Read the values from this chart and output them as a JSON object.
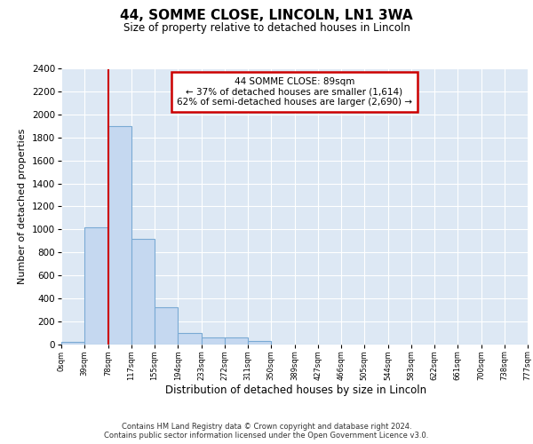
{
  "title": "44, SOMME CLOSE, LINCOLN, LN1 3WA",
  "subtitle": "Size of property relative to detached houses in Lincoln",
  "xlabel": "Distribution of detached houses by size in Lincoln",
  "ylabel": "Number of detached properties",
  "bins": [
    "0sqm",
    "39sqm",
    "78sqm",
    "117sqm",
    "155sqm",
    "194sqm",
    "233sqm",
    "272sqm",
    "311sqm",
    "350sqm",
    "389sqm",
    "427sqm",
    "466sqm",
    "505sqm",
    "544sqm",
    "583sqm",
    "622sqm",
    "661sqm",
    "700sqm",
    "738sqm",
    "777sqm"
  ],
  "values": [
    20,
    1020,
    1900,
    920,
    320,
    100,
    55,
    55,
    30,
    0,
    0,
    0,
    0,
    0,
    0,
    0,
    0,
    0,
    0,
    0
  ],
  "bar_color": "#c5d8f0",
  "bar_edge_color": "#7aaad4",
  "vline_x": 2,
  "vline_color": "#cc0000",
  "annotation_line1": "44 SOMME CLOSE: 89sqm",
  "annotation_line2": "← 37% of detached houses are smaller (1,614)",
  "annotation_line3": "62% of semi-detached houses are larger (2,690) →",
  "annotation_box_edgecolor": "#cc0000",
  "ylim_max": 2400,
  "yticks": [
    0,
    200,
    400,
    600,
    800,
    1000,
    1200,
    1400,
    1600,
    1800,
    2000,
    2200,
    2400
  ],
  "bg_color": "#dde8f4",
  "grid_color": "#ffffff",
  "footer1": "Contains HM Land Registry data © Crown copyright and database right 2024.",
  "footer2": "Contains public sector information licensed under the Open Government Licence v3.0."
}
